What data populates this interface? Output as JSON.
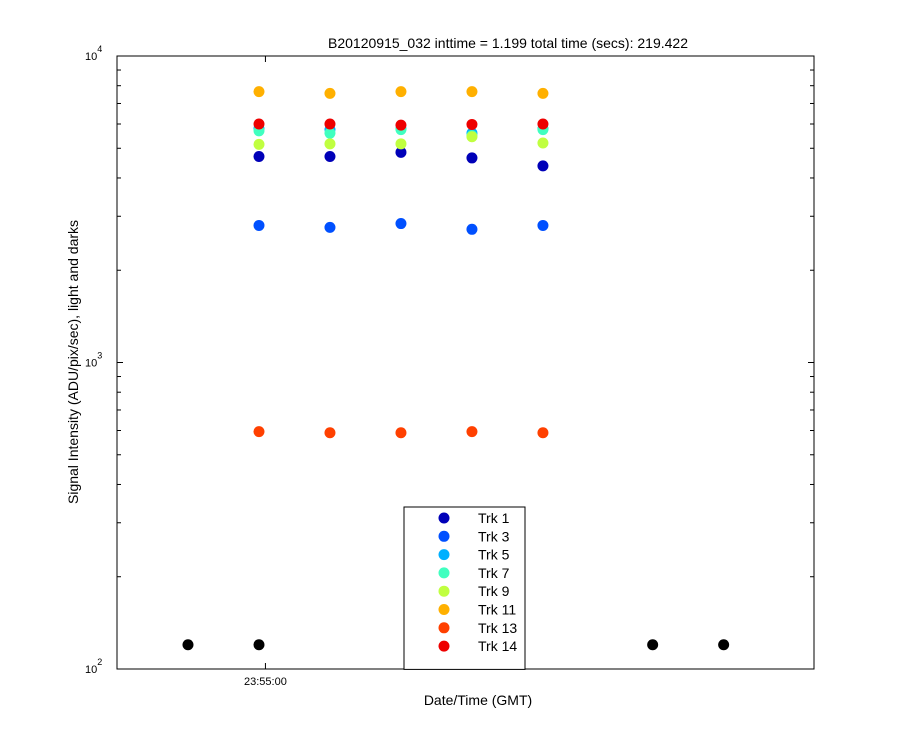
{
  "chart_data": {
    "type": "scatter",
    "title": "B20120915_032 inttime = 1.199 total time (secs): 219.422",
    "xlabel": "Date/Time (GMT)",
    "ylabel": "Signal Intensity (ADU/pix/sec), light and darks",
    "y_scale": "log",
    "ylim": [
      100,
      10000
    ],
    "xlim": [
      "23:54:37",
      "23:56:25"
    ],
    "x_ticks": [
      {
        "value": "23:55:00",
        "label": "23:55:00"
      }
    ],
    "y_ticks": [
      {
        "base": "10",
        "exponent": "2",
        "value": 100
      },
      {
        "base": "10",
        "exponent": "3",
        "value": 1000
      },
      {
        "base": "10",
        "exponent": "4",
        "value": 10000
      }
    ],
    "grid": false,
    "legend_position": "bottom-center",
    "series": [
      {
        "name": "Trk 1",
        "color": "#0000b8",
        "x": [
          "23:54:59",
          "23:55:10",
          "23:55:21",
          "23:55:32",
          "23:55:43"
        ],
        "values": [
          4700,
          4700,
          4850,
          4650,
          4380
        ]
      },
      {
        "name": "Trk 3",
        "color": "#0050ff",
        "x": [
          "23:54:59",
          "23:55:10",
          "23:55:21",
          "23:55:32",
          "23:55:43"
        ],
        "values": [
          2800,
          2760,
          2840,
          2720,
          2800
        ]
      },
      {
        "name": "Trk 5",
        "color": "#00b0ff",
        "x": [
          "23:54:59",
          "23:55:10",
          "23:55:21",
          "23:55:32",
          "23:55:43"
        ],
        "values": [
          5800,
          5750,
          5800,
          5600,
          5800
        ]
      },
      {
        "name": "Trk 7",
        "color": "#40ffc0",
        "x": [
          "23:54:59",
          "23:55:10",
          "23:55:21",
          "23:55:32",
          "23:55:43"
        ],
        "values": [
          5700,
          5600,
          5750,
          5500,
          5750
        ]
      },
      {
        "name": "Trk 9",
        "color": "#c0ff40",
        "x": [
          "23:54:59",
          "23:55:10",
          "23:55:21",
          "23:55:32",
          "23:55:43"
        ],
        "values": [
          5150,
          5170,
          5170,
          5450,
          5200
        ]
      },
      {
        "name": "Trk 11",
        "color": "#ffb000",
        "x": [
          "23:54:59",
          "23:55:10",
          "23:55:21",
          "23:55:32",
          "23:55:43"
        ],
        "values": [
          7650,
          7550,
          7650,
          7650,
          7550
        ]
      },
      {
        "name": "Trk 13",
        "color": "#ff4000",
        "x": [
          "23:54:59",
          "23:55:10",
          "23:55:21",
          "23:55:32",
          "23:55:43"
        ],
        "values": [
          595,
          590,
          590,
          595,
          590
        ]
      },
      {
        "name": "Trk 14",
        "color": "#ee0000",
        "x": [
          "23:54:59",
          "23:55:10",
          "23:55:21",
          "23:55:32",
          "23:55:43"
        ],
        "values": [
          6000,
          6000,
          5950,
          5980,
          6000
        ]
      },
      {
        "color": "#000000",
        "x": [
          "23:54:48",
          "23:54:59",
          "23:56:00",
          "23:56:11"
        ],
        "values": [
          120,
          120,
          120,
          120
        ]
      }
    ]
  }
}
